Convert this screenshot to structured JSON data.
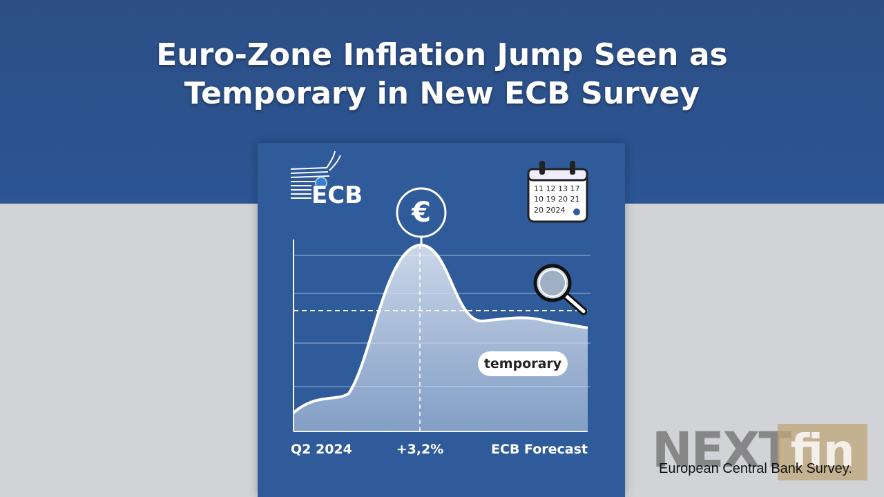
{
  "header": {
    "title_lines": [
      "Euro-Zone Inflation Jump Seen as",
      "Temporary in New ECB Survey"
    ]
  },
  "card": {
    "logo": "ECB",
    "euro_symbol": "€",
    "calendar_rows": [
      "11 12 13 17",
      "10 19 20 21",
      "20 2024"
    ],
    "pill": "temporary",
    "labels": [
      "Q2 2024",
      "+3,2%",
      "ECB Forecast"
    ]
  },
  "watermark": {
    "brand_left": "NEXT",
    "brand_right": "fin",
    "caption": "European Central Bank Survey."
  }
}
